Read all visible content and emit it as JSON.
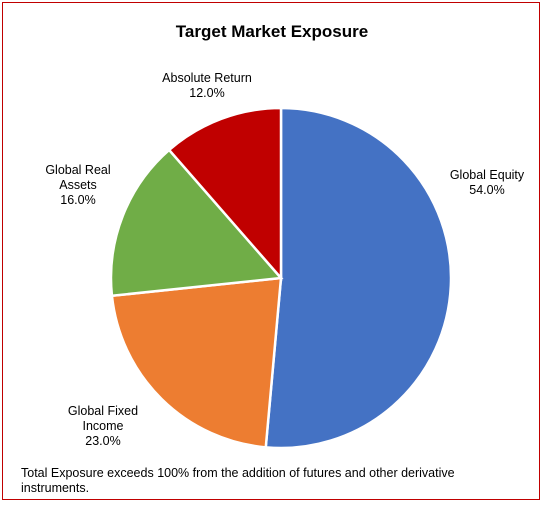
{
  "chart_data": {
    "type": "pie",
    "title": "Target Market Exposure",
    "slices": [
      {
        "name_lines": [
          "Global Equity"
        ],
        "value": 54.0,
        "value_label": "54.0%",
        "color": "#4472c4"
      },
      {
        "name_lines": [
          "Global Fixed",
          "Income"
        ],
        "value": 23.0,
        "value_label": "23.0%",
        "color": "#ed7d31"
      },
      {
        "name_lines": [
          "Global Real",
          "Assets"
        ],
        "value": 16.0,
        "value_label": "16.0%",
        "color": "#70ad47"
      },
      {
        "name_lines": [
          "Absolute Return"
        ],
        "value": 12.0,
        "value_label": "12.0%",
        "color": "#c00000"
      }
    ],
    "legend": "none",
    "border_color": "#c00000"
  },
  "footnote": "Total Exposure exceeds 100% from the addition of futures and other derivative instruments."
}
